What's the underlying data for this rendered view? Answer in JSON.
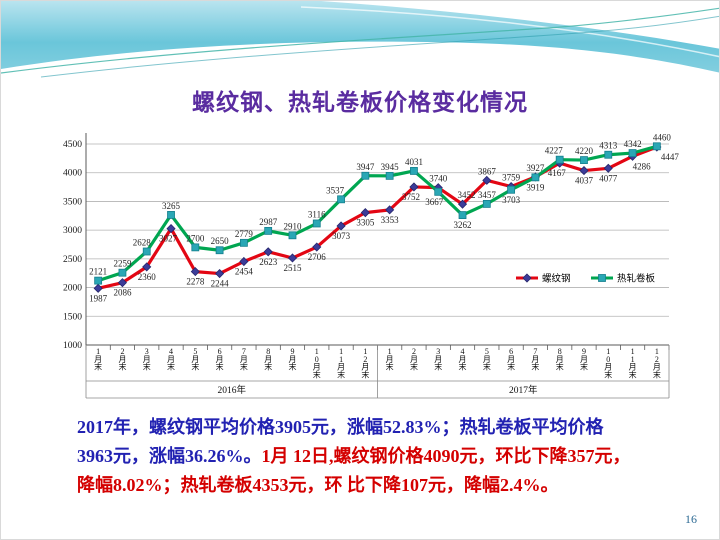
{
  "slide": {
    "title": "螺纹钢、热轧卷板价格变化情况",
    "page_number": "16"
  },
  "colors": {
    "title": "#5a2ca0",
    "summary_blue": "#2222b2",
    "summary_red": "#d40000",
    "page_number": "#2d6a94",
    "rebar_line": "#e30613",
    "rebar_marker": "#3c3c99",
    "hrc_line": "#00a651",
    "hrc_marker": "#2aa7b5"
  },
  "summary": {
    "lines": [
      {
        "segments": [
          {
            "text": "2017年，螺纹钢平均价格3905元，涨幅52.83%；热轧卷板平均价格",
            "color": "#2222b2"
          }
        ]
      },
      {
        "segments": [
          {
            "text": "3963元，涨幅36.26%。",
            "color": "#2222b2"
          },
          {
            "text": "1月 12日,螺纹钢价格4090元，环比下降357元，",
            "color": "#d40000"
          }
        ]
      },
      {
        "segments": [
          {
            "text": "降幅8.02%；热轧卷板4353元，环 比下降107元，降幅2.4%。",
            "color": "#d40000"
          }
        ]
      }
    ]
  },
  "chart_data": {
    "type": "line",
    "title": "",
    "categories": [
      "1月末",
      "2月末",
      "3月末",
      "4月末",
      "5月末",
      "6月末",
      "7月末",
      "8月末",
      "9月末",
      "10月末",
      "11月末",
      "12月末"
    ],
    "group_labels": [
      "2016年",
      "2017年"
    ],
    "ylim": [
      1000,
      4500
    ],
    "ytick_step": 500,
    "grid": true,
    "legend_position": "inside right",
    "series": [
      {
        "name": "螺纹钢",
        "line_color": "#e30613",
        "marker": "diamond",
        "marker_fill": "#3c3c99",
        "marker_stroke": "#26266b",
        "values": [
          1987,
          2086,
          2360,
          3027,
          2278,
          2244,
          2454,
          2623,
          2515,
          2706,
          3073,
          3305,
          3353,
          3752,
          3740,
          3452,
          3867,
          3759,
          3927,
          4167,
          4037,
          4077,
          4286,
          4447
        ],
        "label_pos": [
          "below",
          "below",
          "below",
          "below",
          "below",
          "below",
          "below",
          "below",
          "below",
          "below",
          "below",
          "below",
          "below",
          "below",
          "above",
          "above",
          "above",
          "above",
          "above",
          "below",
          "below",
          "below",
          "below",
          "below"
        ],
        "label_dx": {
          "3": -3,
          "13": -3,
          "15": 4,
          "19": -3,
          "22": 9,
          "23": 13
        }
      },
      {
        "name": "热轧卷板",
        "line_color": "#00a651",
        "marker": "square",
        "marker_fill": "#2aa7b5",
        "marker_stroke": "#157f8d",
        "values": [
          2121,
          2259,
          2628,
          3265,
          2700,
          2650,
          2779,
          2987,
          2910,
          3116,
          3537,
          3947,
          3945,
          4031,
          3667,
          3262,
          3457,
          3703,
          3919,
          4227,
          4220,
          4313,
          4342,
          4460
        ],
        "label_pos": [
          "above",
          "above",
          "above",
          "above",
          "above",
          "above",
          "above",
          "above",
          "above",
          "above",
          "above",
          "above",
          "above",
          "above",
          "below",
          "below",
          "above",
          "below",
          "below",
          "above",
          "above",
          "above",
          "above",
          "above"
        ],
        "label_dx": {
          "2": -5,
          "10": -6,
          "14": -4,
          "19": -6,
          "23": 5
        }
      }
    ]
  }
}
